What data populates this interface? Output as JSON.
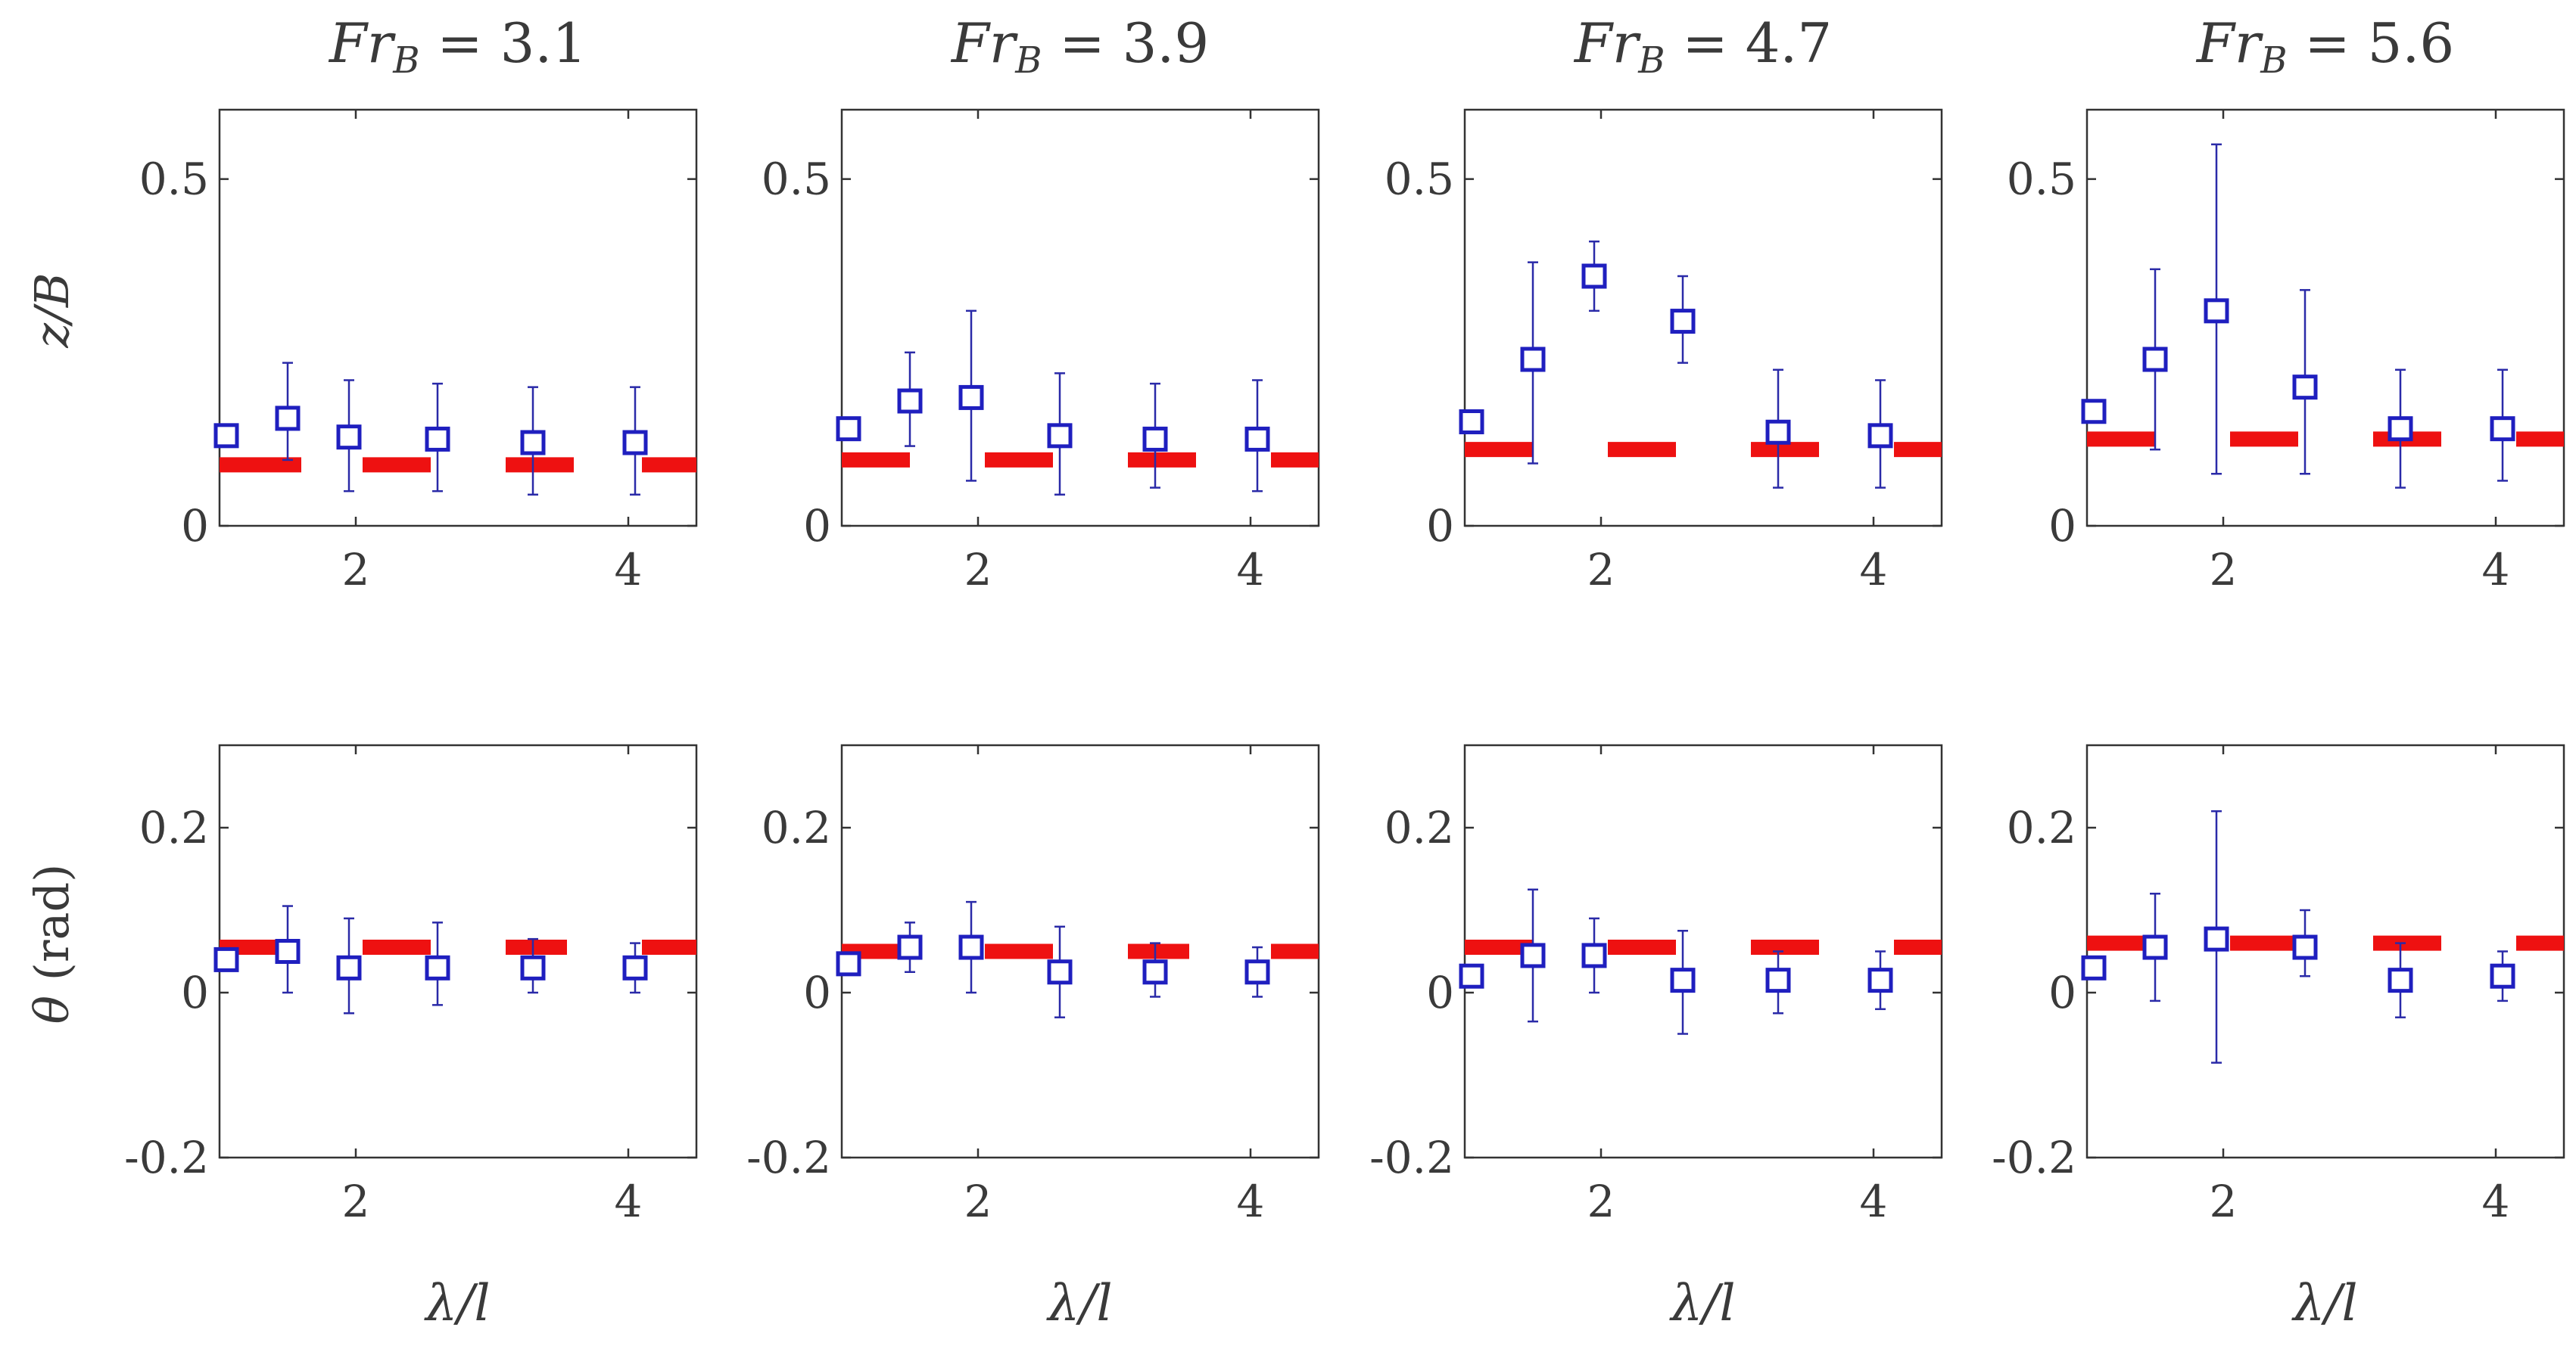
{
  "colors": {
    "marker": "#1f1fbf",
    "errorbar": "#2a2aa8",
    "model": "#ee1111",
    "axis": "#333333",
    "text": "#3a3a3a"
  },
  "chart_data": {
    "type": "scatter",
    "layout": "2 rows x 4 columns of small multiples",
    "legend": "none",
    "xlabel": "λ/l",
    "xlim": [
      1,
      4.5
    ],
    "x_ticks": [
      2,
      4
    ],
    "x": [
      1.05,
      1.5,
      1.95,
      2.6,
      3.3,
      4.05
    ],
    "columns": [
      {
        "title_var": "Fr",
        "title_sub": "B",
        "title_rest": " = 3.1",
        "z": {
          "mean": [
            0.13,
            0.155,
            0.128,
            0.125,
            0.12,
            0.12
          ],
          "err_low": [
            0.13,
            0.095,
            0.05,
            0.05,
            0.045,
            0.045
          ],
          "err_high": [
            0.13,
            0.235,
            0.21,
            0.205,
            0.2,
            0.2
          ],
          "model": [
            0.088,
            0.088,
            0.088,
            0.088
          ],
          "model_x": [
            [
              1.0,
              1.6
            ],
            [
              2.05,
              2.55
            ],
            [
              3.1,
              3.6
            ],
            [
              4.1,
              4.5
            ]
          ]
        },
        "theta": {
          "mean": [
            0.04,
            0.05,
            0.03,
            0.03,
            0.03,
            0.03
          ],
          "err_low": [
            0.04,
            0.0,
            -0.025,
            -0.015,
            0.0,
            0.0
          ],
          "err_high": [
            0.04,
            0.105,
            0.09,
            0.085,
            0.065,
            0.06
          ],
          "model": [
            0.055,
            0.055,
            0.055,
            0.055
          ],
          "model_x": [
            [
              1.0,
              1.5
            ],
            [
              2.05,
              2.55
            ],
            [
              3.1,
              3.55
            ],
            [
              4.1,
              4.5
            ]
          ]
        }
      },
      {
        "title_var": "Fr",
        "title_sub": "B",
        "title_rest": " = 3.9",
        "z": {
          "mean": [
            0.14,
            0.18,
            0.185,
            0.13,
            0.125,
            0.125
          ],
          "err_low": [
            0.14,
            0.115,
            0.065,
            0.045,
            0.055,
            0.05
          ],
          "err_high": [
            0.14,
            0.25,
            0.31,
            0.22,
            0.205,
            0.21
          ],
          "model": [
            0.095,
            0.095,
            0.095,
            0.095
          ],
          "model_x": [
            [
              1.0,
              1.5
            ],
            [
              2.05,
              2.55
            ],
            [
              3.1,
              3.6
            ],
            [
              4.15,
              4.5
            ]
          ]
        },
        "theta": {
          "mean": [
            0.035,
            0.055,
            0.055,
            0.025,
            0.025,
            0.025
          ],
          "err_low": [
            0.035,
            0.025,
            0.0,
            -0.03,
            -0.005,
            -0.005
          ],
          "err_high": [
            0.035,
            0.085,
            0.11,
            0.08,
            0.06,
            0.055
          ],
          "model": [
            0.05,
            0.05,
            0.05,
            0.05
          ],
          "model_x": [
            [
              1.0,
              1.5
            ],
            [
              2.05,
              2.55
            ],
            [
              3.1,
              3.55
            ],
            [
              4.15,
              4.5
            ]
          ]
        }
      },
      {
        "title_var": "Fr",
        "title_sub": "B",
        "title_rest": " = 4.7",
        "z": {
          "mean": [
            0.15,
            0.24,
            0.36,
            0.295,
            0.135,
            0.13
          ],
          "err_low": [
            0.15,
            0.09,
            0.31,
            0.235,
            0.055,
            0.055
          ],
          "err_high": [
            0.15,
            0.38,
            0.41,
            0.36,
            0.225,
            0.21
          ],
          "model": [
            0.11,
            0.11,
            0.11,
            0.11
          ],
          "model_x": [
            [
              1.0,
              1.5
            ],
            [
              2.05,
              2.55
            ],
            [
              3.1,
              3.6
            ],
            [
              4.15,
              4.5
            ]
          ]
        },
        "theta": {
          "mean": [
            0.02,
            0.045,
            0.045,
            0.015,
            0.015,
            0.015
          ],
          "err_low": [
            0.02,
            -0.035,
            0.0,
            -0.05,
            -0.025,
            -0.02
          ],
          "err_high": [
            0.02,
            0.125,
            0.09,
            0.075,
            0.05,
            0.05
          ],
          "model": [
            0.055,
            0.055,
            0.055,
            0.055
          ],
          "model_x": [
            [
              1.0,
              1.5
            ],
            [
              2.05,
              2.55
            ],
            [
              3.1,
              3.6
            ],
            [
              4.15,
              4.5
            ]
          ]
        }
      },
      {
        "title_var": "Fr",
        "title_sub": "B",
        "title_rest": " = 5.6",
        "z": {
          "mean": [
            0.165,
            0.24,
            0.31,
            0.2,
            0.14,
            0.14
          ],
          "err_low": [
            0.165,
            0.11,
            0.075,
            0.075,
            0.055,
            0.065
          ],
          "err_high": [
            0.165,
            0.37,
            0.55,
            0.34,
            0.225,
            0.225
          ],
          "model": [
            0.125,
            0.125,
            0.125,
            0.125
          ],
          "model_x": [
            [
              1.0,
              1.5
            ],
            [
              2.05,
              2.55
            ],
            [
              3.1,
              3.6
            ],
            [
              4.15,
              4.5
            ]
          ]
        },
        "theta": {
          "mean": [
            0.03,
            0.055,
            0.065,
            0.055,
            0.015,
            0.02
          ],
          "err_low": [
            0.03,
            -0.01,
            -0.085,
            0.02,
            -0.03,
            -0.01
          ],
          "err_high": [
            0.03,
            0.12,
            0.22,
            0.1,
            0.06,
            0.05
          ],
          "model": [
            0.06,
            0.06,
            0.06,
            0.06
          ],
          "model_x": [
            [
              1.0,
              1.5
            ],
            [
              2.05,
              2.55
            ],
            [
              3.1,
              3.6
            ],
            [
              4.15,
              4.5
            ]
          ]
        }
      }
    ],
    "rows": [
      {
        "key": "z",
        "ylabel_var": "z",
        "ylabel_rest": "/B",
        "ylim": [
          0,
          0.6
        ],
        "y_ticks": [
          0,
          0.5
        ],
        "y_tick_labels": [
          "0",
          "0.5"
        ]
      },
      {
        "key": "theta",
        "ylabel_var": "θ",
        "ylabel_rest": " (rad)",
        "ylim": [
          -0.2,
          0.3
        ],
        "y_ticks": [
          -0.2,
          0,
          0.2
        ],
        "y_tick_labels": [
          "-0.2",
          "0",
          "0.2"
        ]
      }
    ],
    "x_tick_labels": [
      "2",
      "4"
    ]
  }
}
